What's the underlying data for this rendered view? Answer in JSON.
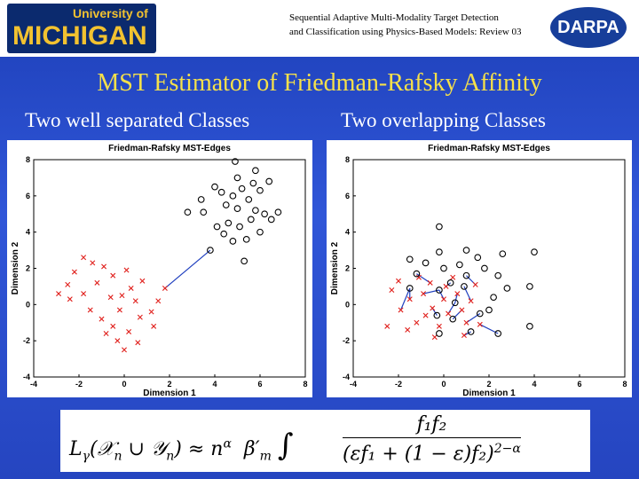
{
  "header": {
    "logo_top": "University of",
    "logo_main": "MICHIGAN",
    "title_line1": "Sequential Adaptive Multi-Modality Target Detection",
    "title_line2": "and Classification using Physics-Based Models: Review 03",
    "darpa": "DARPA"
  },
  "slide_title": "MST Estimator of Friedman-Rafsky Affinity",
  "left_caption": "Two well separated Classes",
  "right_caption": "Two overlapping  Classes",
  "chart_data": [
    {
      "type": "scatter",
      "title": "Friedman-Rafsky MST-Edges",
      "xlabel": "Dimension 1",
      "ylabel": "Dimension 2",
      "xlim": [
        -4,
        8
      ],
      "ylim": [
        -4,
        8
      ],
      "xticks": [
        -4,
        -2,
        0,
        2,
        4,
        6,
        8
      ],
      "yticks": [
        -4,
        -2,
        0,
        2,
        4,
        6,
        8
      ],
      "edge_color": "#1f3fbf",
      "series": [
        {
          "marker": "cross",
          "color": "#e0201c",
          "x": [
            -1.8,
            -2.2,
            -2.5,
            -2.4,
            -1.8,
            -1.2,
            -0.9,
            -0.5,
            0.1,
            0.3,
            -0.6,
            -0.2,
            0.5,
            -1,
            -0.5,
            0.2,
            0.7,
            1.2,
            1.8,
            1.5,
            -1.5,
            -0.8,
            0,
            0.6,
            -0.3,
            1.3,
            -1.4,
            0.8,
            -2.9,
            -0.1
          ],
          "y": [
            2.6,
            1.8,
            1.1,
            0.3,
            0.6,
            1.2,
            2.1,
            1.6,
            1.9,
            0.9,
            0.4,
            -0.3,
            0.2,
            -0.8,
            -1.2,
            -1.5,
            -0.7,
            -0.4,
            0.9,
            0.2,
            -0.3,
            -1.6,
            -2.5,
            -2.1,
            -2,
            -1.2,
            2.3,
            1.3,
            0.6,
            0.5
          ]
        },
        {
          "marker": "circle",
          "color": "#000000",
          "x": [
            4,
            4.3,
            4.5,
            4.8,
            5,
            5.2,
            5.5,
            5.8,
            6,
            6.2,
            5.1,
            4.6,
            3.5,
            3.4,
            2.8,
            4.1,
            5.4,
            6.8,
            6.5,
            5,
            4.9,
            5.8,
            6.4,
            4.4,
            5.6,
            4.8,
            3.8,
            5.3,
            6,
            5.7
          ],
          "y": [
            6.5,
            6.2,
            5.5,
            6,
            5.3,
            6.4,
            5.8,
            5.2,
            6.3,
            5,
            4.3,
            4.5,
            5.1,
            5.8,
            5.1,
            4.3,
            3.6,
            5.1,
            4.7,
            7,
            7.9,
            7.4,
            6.8,
            3.9,
            4.7,
            3.5,
            3,
            2.4,
            4,
            6.7
          ]
        }
      ],
      "mst_edges": [
        [
          18,
          26
        ]
      ]
    },
    {
      "type": "scatter",
      "title": "Friedman-Rafsky MST-Edges",
      "xlabel": "Dimension 1",
      "ylabel": "Dimension 2",
      "xlim": [
        -4,
        8
      ],
      "ylim": [
        -4,
        8
      ],
      "xticks": [
        -4,
        -2,
        0,
        2,
        4,
        6,
        8
      ],
      "yticks": [
        -4,
        -2,
        0,
        2,
        4,
        6,
        8
      ],
      "edge_color": "#1f3fbf",
      "series": [
        {
          "marker": "cross",
          "color": "#e0201c",
          "x": [
            -2.5,
            -2.3,
            -1.9,
            -1.5,
            -1.2,
            -0.9,
            -0.6,
            -0.5,
            -0.2,
            0,
            0.2,
            0.4,
            0.6,
            0.8,
            1,
            1.2,
            1.4,
            -1.1,
            -1.6,
            -0.4,
            0.9,
            1.6,
            -2,
            0.1,
            -0.8
          ],
          "y": [
            -1.2,
            0.8,
            -0.3,
            0.3,
            -1,
            0.6,
            1.2,
            -0.2,
            -1.2,
            0.3,
            -0.5,
            1.5,
            0.6,
            -0.3,
            -1,
            0.2,
            1.1,
            1.5,
            -1.4,
            -1.8,
            -1.7,
            -1.1,
            1.3,
            1,
            -0.6
          ]
        },
        {
          "marker": "circle",
          "color": "#000000",
          "x": [
            -1.2,
            -1.5,
            -0.8,
            -0.2,
            0,
            0.3,
            0.7,
            1,
            1.5,
            1.8,
            2.4,
            2.8,
            2.2,
            1.6,
            1.2,
            0.4,
            -0.3,
            -0.2,
            0.5,
            -0.2,
            1,
            2.6,
            3.8,
            4,
            3.8,
            2.4,
            -0.2,
            -1.5,
            0.9,
            2
          ],
          "y": [
            1.7,
            2.5,
            2.3,
            2.9,
            2,
            1.2,
            2.2,
            1.6,
            2.6,
            2,
            1.6,
            0.9,
            0.4,
            -0.5,
            -1.5,
            -0.8,
            -0.6,
            0.8,
            0.1,
            4.3,
            3,
            2.8,
            1,
            2.9,
            -1.2,
            -1.6,
            -1.6,
            0.9,
            1,
            -0.3
          ]
        }
      ],
      "mst_edges": [
        [
          5,
          17
        ],
        [
          6,
          0
        ],
        [
          9,
          17
        ],
        [
          12,
          18
        ],
        [
          13,
          15
        ],
        [
          15,
          28
        ],
        [
          16,
          7
        ],
        [
          10,
          18
        ],
        [
          7,
          16
        ],
        [
          14,
          13
        ],
        [
          20,
          14
        ],
        [
          21,
          25
        ],
        [
          3,
          27
        ],
        [
          23,
          5
        ],
        [
          2,
          27
        ]
      ]
    }
  ],
  "formula": {
    "L": "L",
    "gamma": "γ",
    "args": "(𝒳",
    "n1": "n",
    "cup": " ∪ 𝒴",
    "n2": "n",
    "close": ")",
    "approx": "≈ n",
    "alpha": "α",
    "beta": "β′",
    "m": "m",
    "integral": "∫",
    "numerator": "f₁f₂",
    "denominator": "(εf₁ + (1 − ε)f₂)",
    "exponent": "2−α"
  }
}
